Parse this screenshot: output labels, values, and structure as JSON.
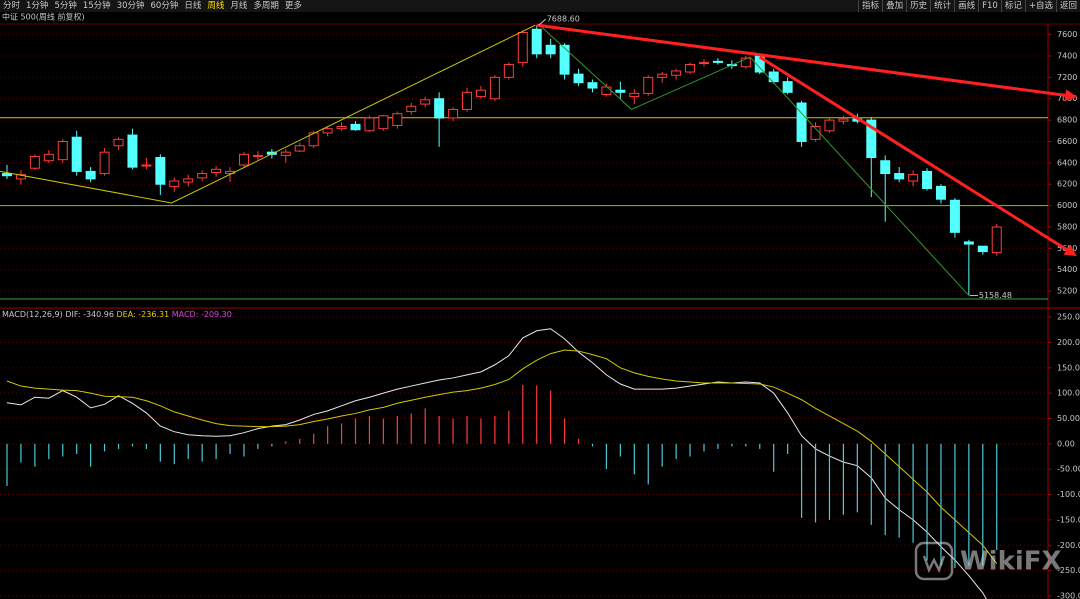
{
  "toolbar": {
    "left": [
      "分时",
      "1分钟",
      "5分钟",
      "15分钟",
      "30分钟",
      "60分钟",
      "日线",
      "周线",
      "月线",
      "多周期",
      "更多"
    ],
    "selected_index": 7,
    "right": [
      "指标",
      "叠加",
      "历史",
      "统计",
      "画线",
      "F10",
      "标记",
      "+自选",
      "返回"
    ]
  },
  "watermark": "WikiFX",
  "chart_data": [
    {
      "type": "candlestick",
      "title": "中证 500(周线 前复权)",
      "open": [
        6300,
        6250,
        6350,
        6420,
        6430,
        6640,
        6320,
        6300,
        6560,
        6660,
        6370,
        6450,
        6180,
        6220,
        6260,
        6310,
        6300,
        6380,
        6460,
        6500,
        6470,
        6510,
        6560,
        6680,
        6720,
        6760,
        6700,
        6720,
        6750,
        6880,
        6950,
        7000,
        6820,
        6900,
        7020,
        7000,
        7200,
        7340,
        7650,
        7500,
        7500,
        7230,
        7150,
        7040,
        7080,
        7020,
        7050,
        7200,
        7220,
        7250,
        7330,
        7350,
        7320,
        7300,
        7400,
        7250,
        7160,
        6960,
        6620,
        6700,
        6790,
        6810,
        6800,
        6420,
        6300,
        6230,
        6320,
        6180,
        6050,
        5660,
        5620,
        5560
      ],
      "high": [
        6380,
        6330,
        6480,
        6520,
        6620,
        6700,
        6360,
        6540,
        6640,
        6720,
        6450,
        6480,
        6260,
        6290,
        6330,
        6370,
        6360,
        6500,
        6510,
        6530,
        6530,
        6590,
        6700,
        6740,
        6780,
        6790,
        6840,
        6850,
        6880,
        6960,
        7020,
        7060,
        6920,
        7100,
        7120,
        7220,
        7340,
        7640,
        7688.6,
        7560,
        7520,
        7280,
        7180,
        7140,
        7160,
        7090,
        7220,
        7250,
        7280,
        7340,
        7370,
        7380,
        7360,
        7400,
        7420,
        7280,
        7200,
        6980,
        6780,
        6830,
        6840,
        6860,
        6830,
        6470,
        6360,
        6330,
        6350,
        6200,
        6070,
        5680,
        5620,
        5830
      ],
      "low": [
        6250,
        6200,
        6330,
        6400,
        6400,
        6280,
        6220,
        6280,
        6520,
        6340,
        6340,
        6100,
        6130,
        6180,
        6230,
        6270,
        6220,
        6360,
        6420,
        6440,
        6400,
        6500,
        6540,
        6650,
        6700,
        6700,
        6690,
        6700,
        6720,
        6850,
        6920,
        6550,
        6790,
        6880,
        7000,
        6980,
        7180,
        7300,
        7380,
        7380,
        7180,
        7120,
        7060,
        7020,
        7000,
        6950,
        7030,
        7150,
        7180,
        7230,
        7300,
        7320,
        7280,
        7280,
        7230,
        7140,
        7040,
        6550,
        6600,
        6680,
        6760,
        6770,
        6080,
        5850,
        6220,
        6180,
        6140,
        6020,
        5700,
        5158.48,
        5540,
        5530
      ],
      "close": [
        6280,
        6290,
        6460,
        6480,
        6600,
        6320,
        6250,
        6500,
        6620,
        6360,
        6380,
        6200,
        6230,
        6250,
        6300,
        6340,
        6320,
        6480,
        6470,
        6480,
        6500,
        6560,
        6680,
        6720,
        6740,
        6710,
        6820,
        6840,
        6860,
        6930,
        6990,
        6820,
        6900,
        7060,
        7080,
        7200,
        7320,
        7620,
        7420,
        7420,
        7230,
        7150,
        7100,
        7110,
        7060,
        7050,
        7200,
        7230,
        7260,
        7320,
        7340,
        7340,
        7310,
        7380,
        7250,
        7160,
        7060,
        6600,
        6740,
        6800,
        6810,
        6790,
        6450,
        6300,
        6250,
        6290,
        6160,
        6060,
        5750,
        5640,
        5570,
        5800
      ],
      "up_color": "#ff3c3c",
      "down_color": "#54ffff",
      "ylim": [
        5070,
        7690
      ],
      "yticks": [
        5200,
        5400,
        5600,
        5800,
        6000,
        6200,
        6400,
        6600,
        6800,
        7000,
        7200,
        7400,
        7600
      ],
      "grid": true,
      "high_label": {
        "value": 7688.6,
        "label": "7688.60"
      },
      "low_label": {
        "value": 5158.48,
        "label": "5158.48"
      },
      "hlines": [
        {
          "value": 6822,
          "color": "#c8c800"
        },
        {
          "value": 6000,
          "color": "#7ccd00"
        },
        {
          "value": 5126,
          "color": "#3ca03c"
        }
      ],
      "polylines": [
        {
          "color": "#c8c800",
          "x": [
            -0.5,
            11.8,
            37.9
          ],
          "values": [
            6320,
            6025,
            7688.6
          ]
        },
        {
          "color": "#2f9a2f",
          "x": [
            38.2,
            44.8,
            53.3,
            69
          ],
          "values": [
            7688.6,
            6900,
            7390,
            5158.48
          ]
        }
      ],
      "trend_lines": [
        {
          "color": "#ff2020",
          "x": [
            38,
            76.6
          ],
          "values": [
            7688.6,
            7020
          ]
        },
        {
          "color": "#ff2020",
          "x": [
            54,
            76.6
          ],
          "values": [
            7390,
            5540
          ]
        }
      ]
    },
    {
      "type": "macd",
      "title": "MACD(12,26,9)",
      "series": [
        {
          "name": "DIF:",
          "color": "#e8e8e8",
          "legend_color": "#c8c8c8",
          "values": [
            81,
            77,
            92,
            90,
            105,
            92,
            71,
            78,
            95,
            80,
            61,
            35,
            24,
            18,
            16,
            15,
            16,
            22,
            30,
            35,
            38,
            47,
            58,
            65,
            75,
            85,
            92,
            100,
            108,
            114,
            120,
            126,
            130,
            136,
            142,
            156,
            174,
            209,
            223,
            227,
            207,
            181,
            160,
            136,
            118,
            108,
            108,
            108,
            110,
            114,
            118,
            122,
            120,
            122,
            120,
            100,
            61,
            16,
            -10,
            -24,
            -36,
            -43,
            -67,
            -107,
            -130,
            -150,
            -174,
            -203,
            -229,
            -260,
            -294,
            -340.96
          ]
        },
        {
          "name": "DEA:",
          "color": "#d2c800",
          "legend_color": "#e6d200",
          "values": [
            124,
            114,
            110,
            108,
            106,
            105,
            100,
            94,
            93,
            92,
            85,
            75,
            63,
            55,
            47,
            40,
            36,
            35,
            34,
            34,
            35,
            38,
            44,
            49,
            55,
            60,
            67,
            72,
            80,
            86,
            92,
            97,
            102,
            105,
            110,
            117,
            127,
            148,
            165,
            178,
            185,
            183,
            176,
            168,
            150,
            140,
            133,
            128,
            124,
            122,
            120,
            120,
            120,
            119,
            118,
            112,
            100,
            87,
            70,
            55,
            40,
            25,
            5,
            -20,
            -45,
            -70,
            -95,
            -125,
            -150,
            -175,
            -200,
            -236.31
          ]
        },
        {
          "name": "MACD:",
          "color": "#e040e0",
          "legend_color": "#e040e0",
          "pos_color": "#ff3c3c",
          "neg_color": "#4fc8d8",
          "values": [
            -83,
            -37,
            -45,
            -30,
            -25,
            -20,
            -45,
            -15,
            -10,
            -5,
            -10,
            -35,
            -40,
            -30,
            -35,
            -30,
            -20,
            -25,
            -10,
            -5,
            5,
            10,
            20,
            35,
            40,
            50,
            55,
            50,
            55,
            60,
            70,
            55,
            50,
            55,
            50,
            55,
            65,
            116,
            115,
            105,
            50,
            10,
            -5,
            -50,
            -25,
            -60,
            -80,
            -45,
            -30,
            -25,
            -15,
            -10,
            -5,
            -5,
            -10,
            -55,
            -20,
            -146,
            -155,
            -150,
            -140,
            -135,
            -160,
            -180,
            -185,
            -195,
            -230,
            -240,
            -245,
            -240,
            -240,
            -209.3
          ],
          "value_labels_last": "-209.30"
        }
      ],
      "ylim": [
        -306,
        264
      ],
      "yticks": [
        {
          "value": -300,
          "label": "-300.0"
        },
        {
          "value": -250,
          "label": "-250.0"
        },
        {
          "value": -200,
          "label": "-200.0"
        },
        {
          "value": -150,
          "label": "-150.0"
        },
        {
          "value": -100,
          "label": "-100.0"
        },
        {
          "value": -50,
          "label": "-50.00"
        },
        {
          "value": 0,
          "label": "0.00"
        },
        {
          "value": 50,
          "label": "50.00"
        },
        {
          "value": 100,
          "label": "100.0"
        },
        {
          "value": 150,
          "label": "150.0"
        },
        {
          "value": 200,
          "label": "200.0"
        },
        {
          "value": 250,
          "label": "250.0"
        }
      ],
      "grid": true
    }
  ]
}
